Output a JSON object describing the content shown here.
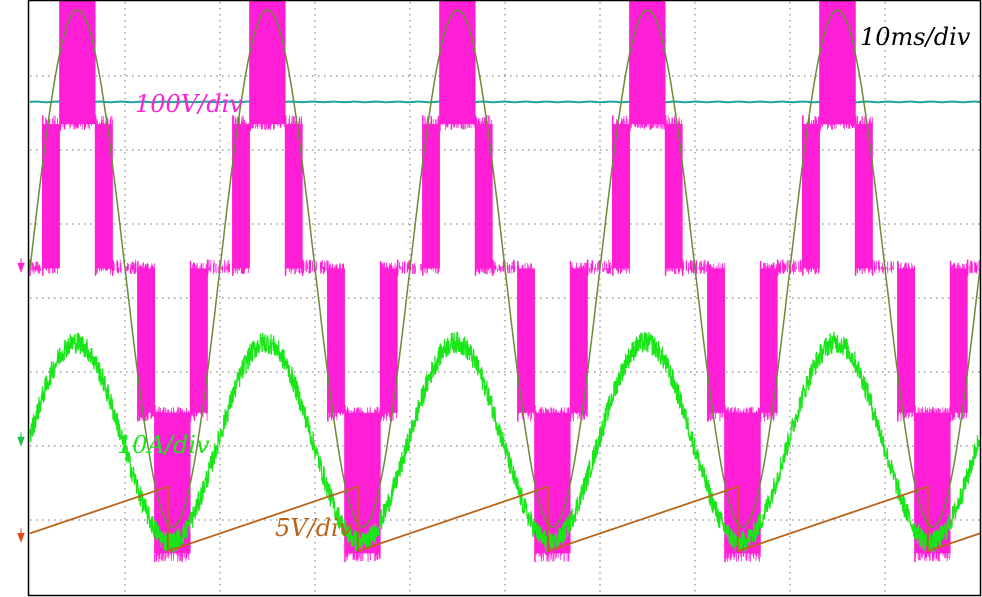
{
  "chart_data": {
    "type": "line",
    "timebase_label": "10ms/div",
    "grid": true,
    "grid_divisions": {
      "x": 10,
      "y": 8
    },
    "x": {
      "unit": "div",
      "range": [
        0,
        10
      ]
    },
    "y": {
      "unit": "div",
      "range": [
        0,
        8
      ]
    },
    "series": [
      {
        "key": "dc",
        "type": "line",
        "ground_div": 6.65,
        "points": [
          [
            0,
            0
          ],
          [
            10,
            0
          ]
        ]
      },
      {
        "key": "voltage",
        "label": "100V/div",
        "type": "staircase",
        "ground_div": 4.4,
        "fundamental_period_div": 2,
        "phase_start_div": 0.0,
        "levels": [
          0,
          1.95,
          3.85
        ],
        "sine_amplitude_div": 3.6
      },
      {
        "key": "current",
        "label": "10A/div",
        "type": "sine",
        "ground_div": 2.05,
        "amplitude_div": 1.35,
        "period_div": 2,
        "phase_start_div": -0.02,
        "noise_div": 0.15
      },
      {
        "key": "carrier",
        "label": "5V/div",
        "type": "sawtooth",
        "ground_div": 0.75,
        "low_div": 0.58,
        "high_div": 1.45,
        "period_div": 2,
        "first_drop_div": 1.45
      }
    ],
    "colors": {
      "dc": "#1aa39a",
      "voltage": "#ff1fd6",
      "voltage_fundamental": "#6b8a3a",
      "current": "#19e619",
      "carrier": "#b8641a",
      "grid": "#8a8a8a",
      "frame": "#000000",
      "ground_markers": {
        "voltage": "#ff1fd6",
        "current": "#19c44a",
        "carrier": "#e8461a"
      }
    }
  }
}
